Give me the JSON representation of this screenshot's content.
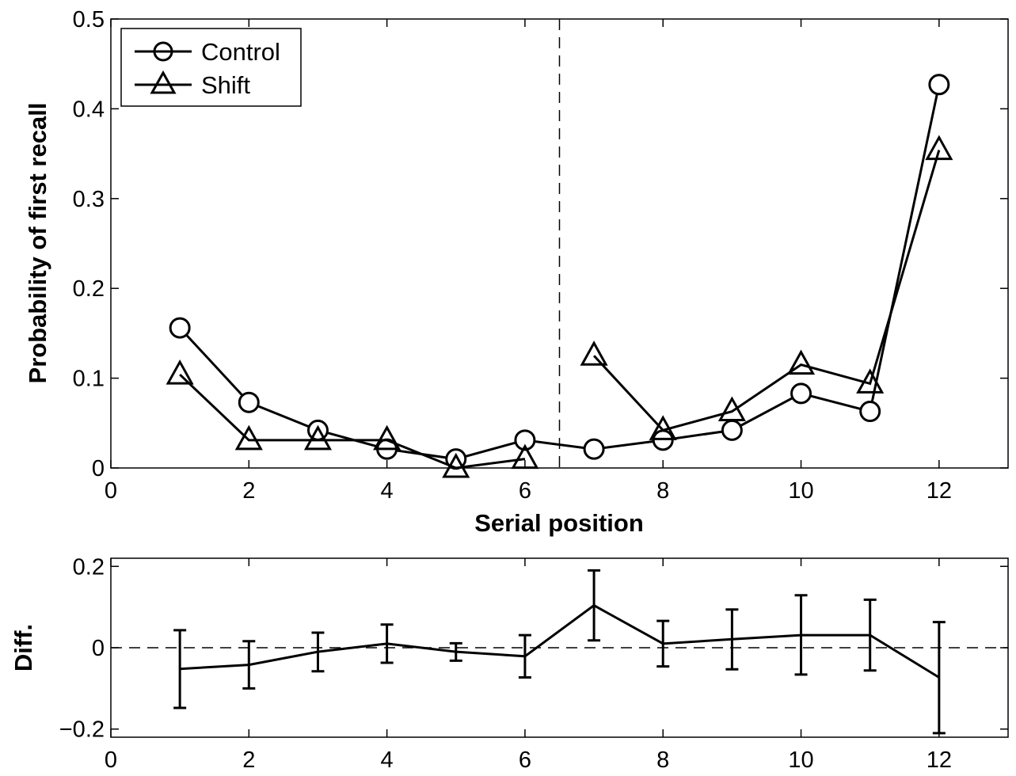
{
  "chart_data": [
    {
      "type": "line",
      "xlabel": "Serial position",
      "ylabel": "Probability of first recall",
      "xlim": [
        0,
        13
      ],
      "ylim": [
        0,
        0.5
      ],
      "xticks": [
        "0",
        "2",
        "4",
        "6",
        "8",
        "10",
        "12"
      ],
      "yticks": [
        "0",
        "0.1",
        "0.2",
        "0.3",
        "0.4",
        "0.5"
      ],
      "divider_x": 6.5,
      "legend_position": "top-left",
      "series": [
        {
          "name": "Control",
          "marker": "circle",
          "x": [
            1,
            2,
            3,
            4,
            5,
            6,
            7,
            8,
            9,
            10,
            11,
            12
          ],
          "values": [
            0.156,
            0.073,
            0.042,
            0.021,
            0.01,
            0.031,
            0.021,
            0.031,
            0.042,
            0.083,
            0.063,
            0.427
          ]
        },
        {
          "name": "Shift",
          "marker": "triangle",
          "x": [
            1,
            2,
            3,
            4,
            5,
            6,
            7,
            8,
            9,
            10,
            11,
            12
          ],
          "values": [
            0.104,
            0.031,
            0.031,
            0.031,
            0.0,
            0.01,
            0.125,
            0.042,
            0.063,
            0.115,
            0.094,
            0.354
          ],
          "break_after_x": 6
        }
      ]
    },
    {
      "type": "line",
      "xlabel": "",
      "ylabel": "Diff.",
      "xlim": [
        0,
        13
      ],
      "ylim": [
        -0.22,
        0.22
      ],
      "xticks": [
        "0",
        "2",
        "4",
        "6",
        "8",
        "10",
        "12"
      ],
      "yticks": [
        "−0.2",
        "0",
        "0.2"
      ],
      "reference_line_y": 0,
      "series": [
        {
          "x": [
            1,
            2,
            3,
            4,
            5,
            6,
            7,
            8,
            9,
            10,
            11,
            12
          ],
          "values": [
            -0.052,
            -0.042,
            -0.01,
            0.01,
            -0.01,
            -0.021,
            0.104,
            0.01,
            0.021,
            0.031,
            0.031,
            -0.073
          ],
          "err_low": [
            -0.148,
            -0.1,
            -0.058,
            -0.037,
            -0.032,
            -0.073,
            0.018,
            -0.046,
            -0.053,
            -0.066,
            -0.056,
            -0.21
          ],
          "err_high": [
            0.043,
            0.016,
            0.037,
            0.057,
            0.011,
            0.031,
            0.19,
            0.066,
            0.094,
            0.129,
            0.118,
            0.063
          ]
        }
      ]
    }
  ]
}
